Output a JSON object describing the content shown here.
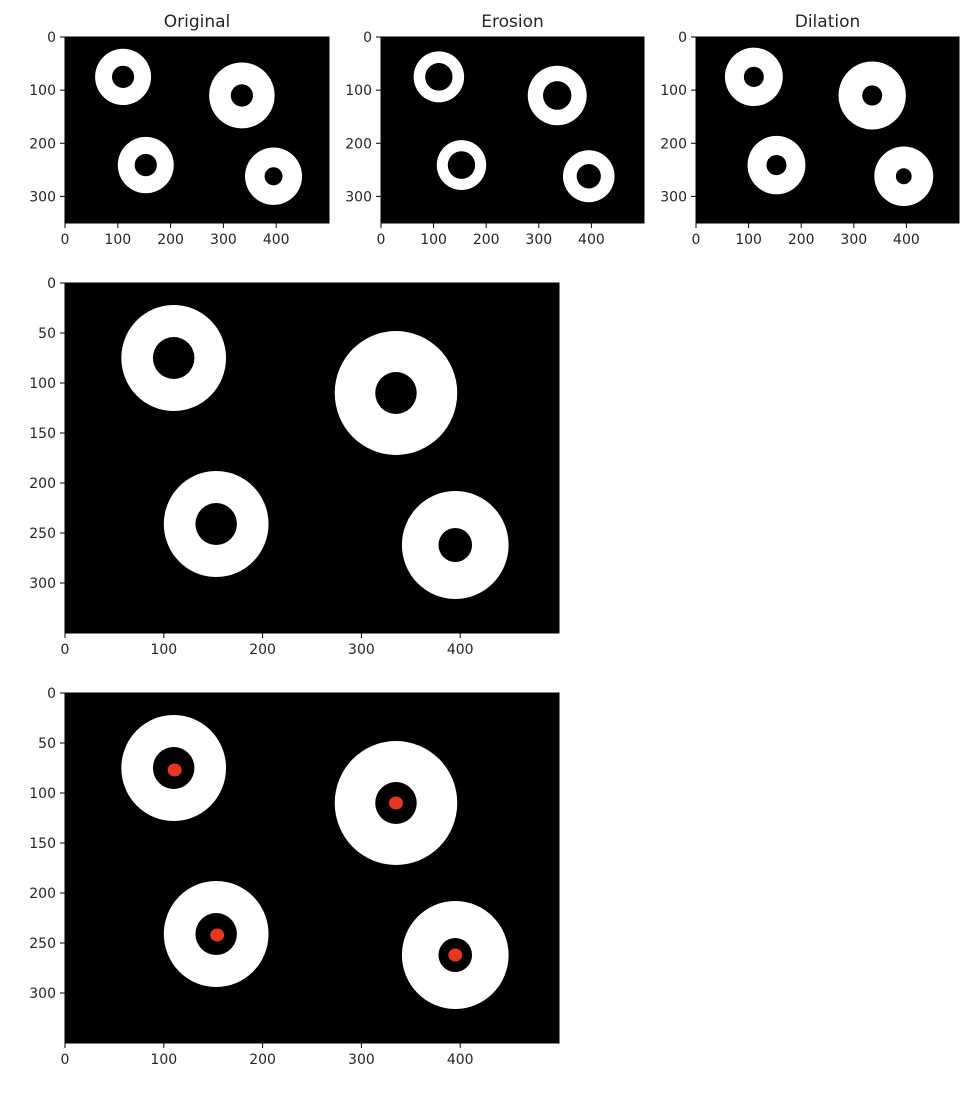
{
  "chart_data": [
    {
      "type": "image",
      "title": "Original",
      "xlim": [
        0,
        500
      ],
      "ylim": [
        350,
        0
      ],
      "xticks": [
        0,
        100,
        200,
        300,
        400
      ],
      "yticks": [
        0,
        100,
        200,
        300
      ],
      "background_color": "#000000",
      "ring_color": "#ffffff",
      "rings": [
        {
          "cx": 110,
          "cy": 75,
          "outer_r": 53,
          "inner_r": 21
        },
        {
          "cx": 335,
          "cy": 110,
          "outer_r": 62,
          "inner_r": 21
        },
        {
          "cx": 153,
          "cy": 241,
          "outer_r": 53,
          "inner_r": 21
        },
        {
          "cx": 395,
          "cy": 262,
          "outer_r": 54,
          "inner_r": 17
        }
      ]
    },
    {
      "type": "image",
      "title": "Erosion",
      "xlim": [
        0,
        500
      ],
      "ylim": [
        350,
        0
      ],
      "xticks": [
        0,
        100,
        200,
        300,
        400
      ],
      "yticks": [
        0,
        100,
        200,
        300
      ],
      "background_color": "#000000",
      "ring_color": "#ffffff",
      "rings": [
        {
          "cx": 110,
          "cy": 75,
          "outer_r": 48,
          "inner_r": 26
        },
        {
          "cx": 335,
          "cy": 110,
          "outer_r": 56,
          "inner_r": 27
        },
        {
          "cx": 153,
          "cy": 241,
          "outer_r": 47,
          "inner_r": 26
        },
        {
          "cx": 395,
          "cy": 262,
          "outer_r": 49,
          "inner_r": 23
        }
      ]
    },
    {
      "type": "image",
      "title": "Dilation",
      "xlim": [
        0,
        500
      ],
      "ylim": [
        350,
        0
      ],
      "xticks": [
        0,
        100,
        200,
        300,
        400
      ],
      "yticks": [
        0,
        100,
        200,
        300
      ],
      "background_color": "#000000",
      "ring_color": "#ffffff",
      "rings": [
        {
          "cx": 110,
          "cy": 75,
          "outer_r": 55,
          "inner_r": 19
        },
        {
          "cx": 335,
          "cy": 110,
          "outer_r": 64,
          "inner_r": 19
        },
        {
          "cx": 153,
          "cy": 241,
          "outer_r": 55,
          "inner_r": 19
        },
        {
          "cx": 395,
          "cy": 262,
          "outer_r": 56,
          "inner_r": 15
        }
      ]
    },
    {
      "type": "image",
      "title": "",
      "xlim": [
        0,
        500
      ],
      "ylim": [
        350,
        0
      ],
      "xticks": [
        0,
        100,
        200,
        300,
        400
      ],
      "yticks": [
        0,
        50,
        100,
        150,
        200,
        250,
        300
      ],
      "background_color": "#000000",
      "ring_color": "#ffffff",
      "rings": [
        {
          "cx": 110,
          "cy": 75,
          "outer_r": 53,
          "inner_r": 21
        },
        {
          "cx": 335,
          "cy": 110,
          "outer_r": 62,
          "inner_r": 21
        },
        {
          "cx": 153,
          "cy": 241,
          "outer_r": 53,
          "inner_r": 21
        },
        {
          "cx": 395,
          "cy": 262,
          "outer_r": 54,
          "inner_r": 17
        }
      ]
    },
    {
      "type": "image",
      "title": "",
      "xlim": [
        0,
        500
      ],
      "ylim": [
        350,
        0
      ],
      "xticks": [
        0,
        100,
        200,
        300,
        400
      ],
      "yticks": [
        0,
        50,
        100,
        150,
        200,
        250,
        300
      ],
      "background_color": "#000000",
      "ring_color": "#ffffff",
      "marker_color": "#e8371e",
      "rings": [
        {
          "cx": 110,
          "cy": 75,
          "outer_r": 53,
          "inner_r": 21
        },
        {
          "cx": 335,
          "cy": 110,
          "outer_r": 62,
          "inner_r": 21
        },
        {
          "cx": 153,
          "cy": 241,
          "outer_r": 53,
          "inner_r": 21
        },
        {
          "cx": 395,
          "cy": 262,
          "outer_r": 54,
          "inner_r": 17
        }
      ],
      "centers": [
        {
          "x": 111,
          "y": 77
        },
        {
          "x": 335,
          "y": 110
        },
        {
          "x": 154,
          "y": 242
        },
        {
          "x": 395,
          "y": 262
        }
      ]
    }
  ]
}
